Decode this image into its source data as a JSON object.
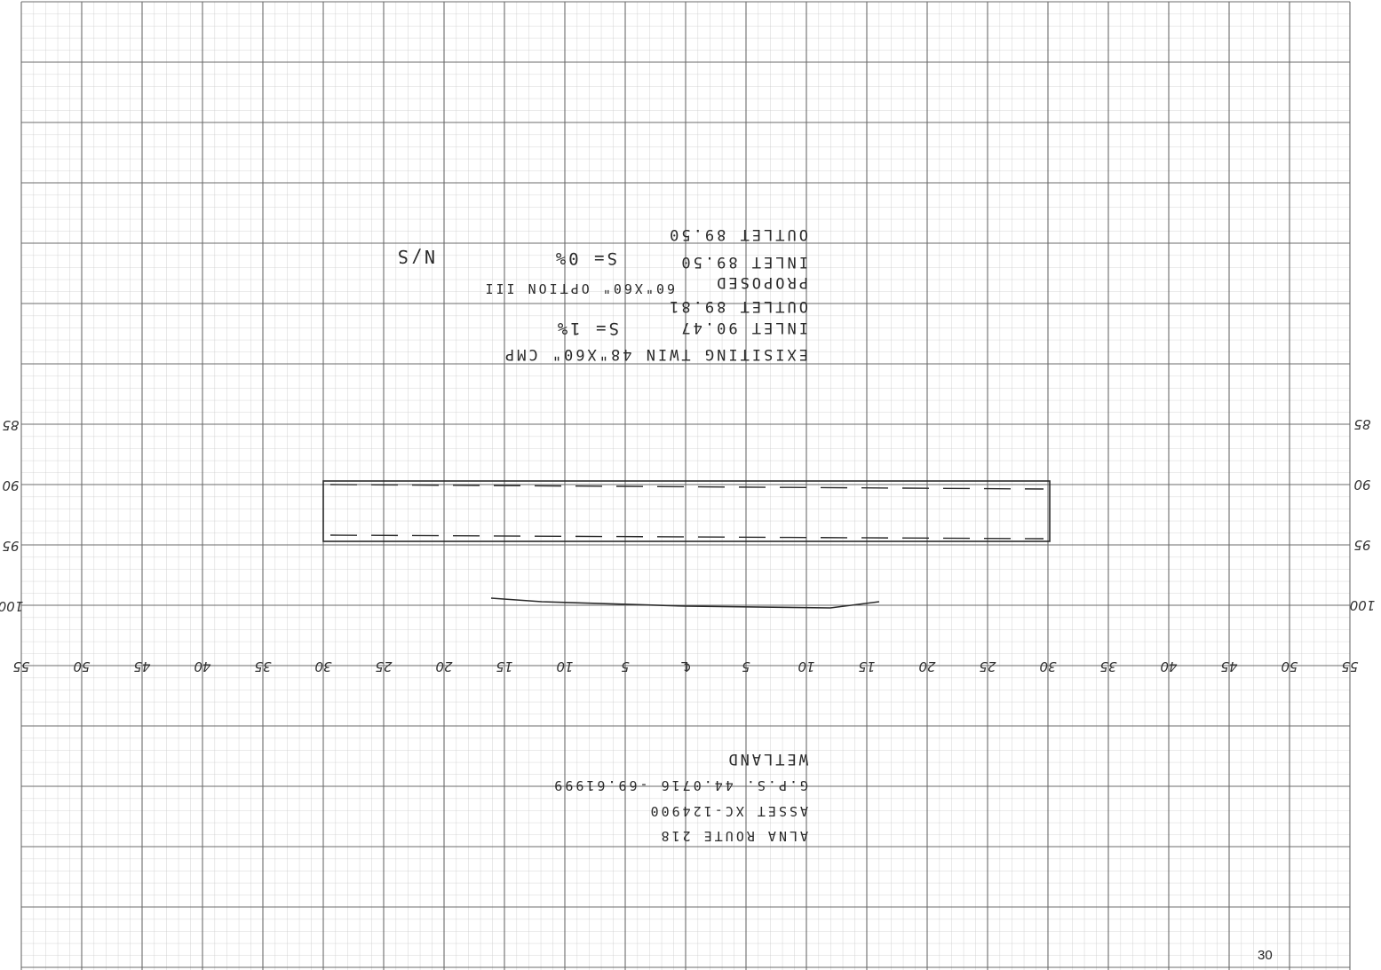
{
  "sheet": {
    "page_number": "30",
    "x_ticks": [
      "55",
      "50",
      "45",
      "40",
      "35",
      "30",
      "25",
      "20",
      "15",
      "10",
      "5",
      "℄",
      "5",
      "10",
      "15",
      "20",
      "25",
      "30",
      "35",
      "40",
      "45",
      "50",
      "55"
    ],
    "elev_ticks": [
      "85",
      "90",
      "95",
      "100"
    ]
  },
  "notes": {
    "existing": {
      "title": "EXISITING TWIN 48\"X60\" CMP",
      "inlet": "INLET 90.47",
      "outlet": "OUTLET 89.81",
      "slope": "S= 1%"
    },
    "proposed": {
      "spec": "60\"X60\" OPTION III",
      "title": "PROPOSED",
      "inlet": "INLET 89.50",
      "outlet": "OUTLET 89.50",
      "slope": "S= 0%",
      "initials": "N/S"
    }
  },
  "site": {
    "route": "ALNA ROUTE 218",
    "asset": "ASSET XC-124900",
    "gps": "G.P.S. 44.0716 -69.61999",
    "type": "WETLAND"
  },
  "colors": {
    "grid_major": "#6b6b6b",
    "grid_minor": "#c4c4c4",
    "ink": "#2a2a2a"
  }
}
